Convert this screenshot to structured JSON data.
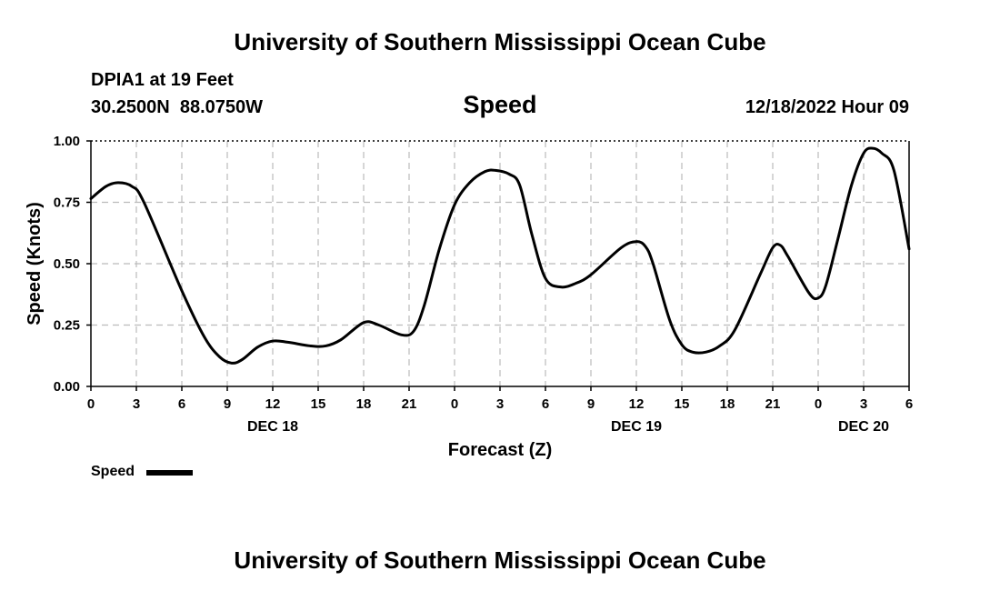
{
  "header": {
    "title": "University of Southern Mississippi Ocean Cube",
    "footer_title": "University of Southern Mississippi Ocean Cube",
    "station": "DPIA1 at 19 Feet",
    "coordinates": "30.2500N  88.0750W",
    "timestamp": "12/18/2022 Hour 09"
  },
  "legend": {
    "label": "Speed"
  },
  "colors": {
    "line": "#000000",
    "grid": "#bbbbbb",
    "background": "#ffffff"
  },
  "chart_data": {
    "type": "line",
    "title": "Speed",
    "xlabel": "Forecast (Z)",
    "ylabel": "Speed (Knots)",
    "xlim": [
      0,
      54
    ],
    "ylim": [
      0,
      1
    ],
    "grid": true,
    "legend_position": "bottom-left",
    "x_ticks": [
      {
        "x": 0,
        "label": "0"
      },
      {
        "x": 3,
        "label": "3"
      },
      {
        "x": 6,
        "label": "6"
      },
      {
        "x": 9,
        "label": "9"
      },
      {
        "x": 12,
        "label": "12"
      },
      {
        "x": 15,
        "label": "15"
      },
      {
        "x": 18,
        "label": "18"
      },
      {
        "x": 21,
        "label": "21"
      },
      {
        "x": 24,
        "label": "0"
      },
      {
        "x": 27,
        "label": "3"
      },
      {
        "x": 30,
        "label": "6"
      },
      {
        "x": 33,
        "label": "9"
      },
      {
        "x": 36,
        "label": "12"
      },
      {
        "x": 39,
        "label": "15"
      },
      {
        "x": 42,
        "label": "18"
      },
      {
        "x": 45,
        "label": "21"
      },
      {
        "x": 48,
        "label": "0"
      },
      {
        "x": 51,
        "label": "3"
      },
      {
        "x": 54,
        "label": "6"
      }
    ],
    "y_ticks": [
      {
        "y": 0.0,
        "label": "0.00"
      },
      {
        "y": 0.25,
        "label": "0.25"
      },
      {
        "y": 0.5,
        "label": "0.50"
      },
      {
        "y": 0.75,
        "label": "0.75"
      },
      {
        "y": 1.0,
        "label": "1.00"
      }
    ],
    "day_labels": [
      {
        "x": 12,
        "label": "DEC 18"
      },
      {
        "x": 36,
        "label": "DEC 19"
      },
      {
        "x": 51,
        "label": "DEC 20"
      }
    ],
    "series": [
      {
        "name": "Speed",
        "x": [
          0,
          1,
          1.8,
          2.7,
          3.5,
          6,
          7.5,
          8.5,
          9.3,
          10,
          11,
          12,
          13,
          14.5,
          15.5,
          16.5,
          18,
          19,
          20.5,
          21.3,
          22,
          23,
          24,
          25,
          26,
          26.7,
          27.6,
          28.3,
          29.1,
          30,
          31,
          32,
          33,
          35,
          36,
          36.6,
          37.1,
          38.2,
          39,
          39.7,
          40.6,
          41.5,
          42.5,
          44.2,
          45,
          45.5,
          46,
          47.4,
          48,
          48.5,
          49.3,
          50.2,
          51,
          51.6,
          52.2,
          53,
          54
        ],
        "y": [
          0.765,
          0.815,
          0.83,
          0.815,
          0.75,
          0.39,
          0.2,
          0.12,
          0.095,
          0.11,
          0.16,
          0.185,
          0.18,
          0.165,
          0.165,
          0.19,
          0.26,
          0.25,
          0.21,
          0.225,
          0.33,
          0.56,
          0.74,
          0.83,
          0.875,
          0.88,
          0.865,
          0.82,
          0.62,
          0.44,
          0.405,
          0.42,
          0.455,
          0.565,
          0.59,
          0.57,
          0.5,
          0.27,
          0.17,
          0.14,
          0.14,
          0.165,
          0.23,
          0.46,
          0.565,
          0.575,
          0.53,
          0.38,
          0.36,
          0.41,
          0.6,
          0.82,
          0.95,
          0.97,
          0.95,
          0.88,
          0.56
        ]
      }
    ]
  }
}
